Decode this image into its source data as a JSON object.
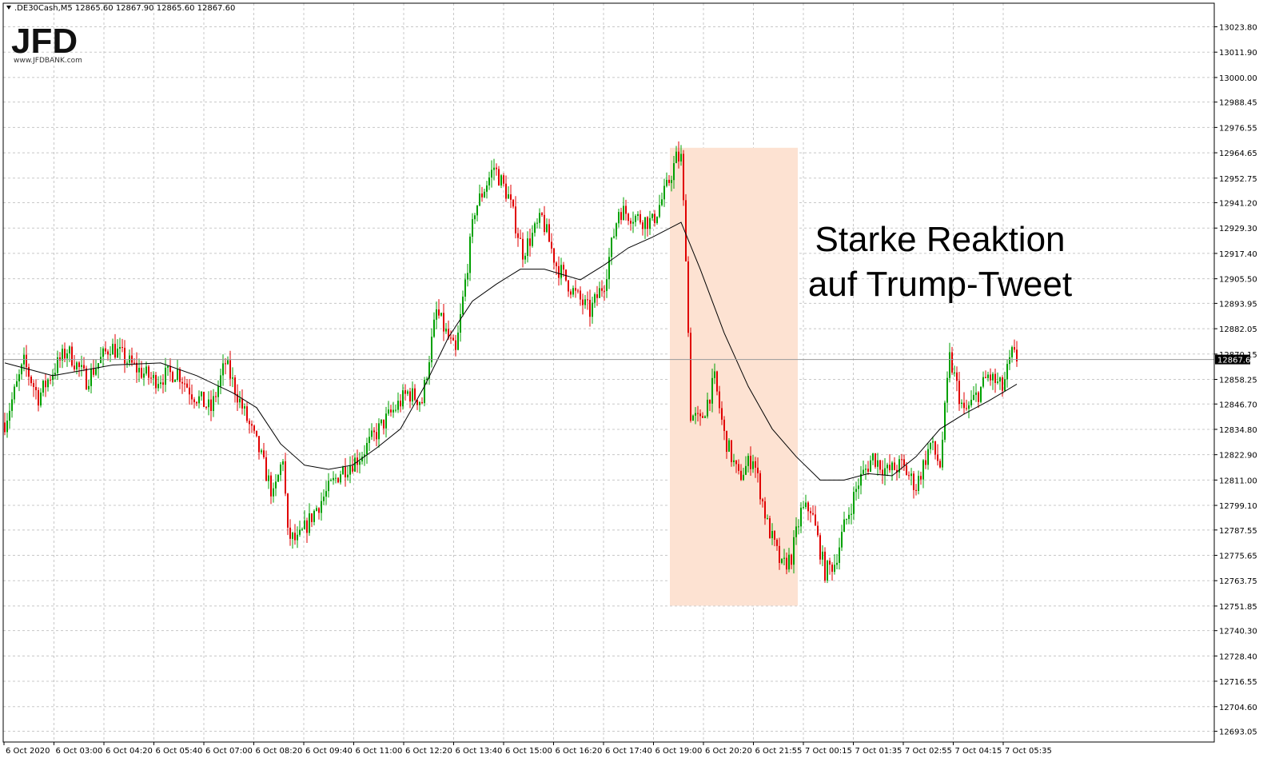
{
  "header": {
    "symbol_line": ".DE30Cash,M5  12865.60 12867.90 12865.60 12867.60"
  },
  "logo": {
    "letters": "JFD",
    "url_text": "www.JFDBANK.com"
  },
  "annotation": {
    "line1": "Starke Reaktion",
    "line2": "auf Trump-Tweet"
  },
  "colors": {
    "bull": "#00a000",
    "bear": "#e00000",
    "grid": "#c8c8c8",
    "ma": "#000000",
    "highlight": "#fde2d2",
    "current_price_bg": "#000000"
  },
  "chart_data": {
    "type": "candlestick",
    "title": "",
    "instrument": ".DE30Cash",
    "timeframe": "M5",
    "ylim": [
      12688.0,
      13030.0
    ],
    "price_ticks": [
      13023.8,
      13011.9,
      13000.0,
      12988.45,
      12976.55,
      12964.65,
      12952.75,
      12941.2,
      12929.3,
      12917.4,
      12905.5,
      12893.95,
      12882.05,
      12870.15,
      12858.25,
      12846.7,
      12834.8,
      12822.9,
      12811.0,
      12799.1,
      12787.55,
      12775.65,
      12763.75,
      12751.85,
      12740.3,
      12728.4,
      12716.55,
      12704.6,
      12693.05
    ],
    "price_tick_labels": [
      "13023.80",
      "13011.90",
      "13000.00",
      "12988.45",
      "12976.55",
      "12964.65",
      "12952.75",
      "12941.20",
      "12929.30",
      "12917.40",
      "12905.50",
      "12893.95",
      "12882.05",
      "12870.15",
      "12858.25",
      "12846.70",
      "12834.80",
      "12822.90",
      "12811.00",
      "12799.10",
      "12787.55",
      "12775.65",
      "12763.75",
      "12751.85",
      "12740.30",
      "12728.40",
      "12716.55",
      "12704.60",
      "12693.05"
    ],
    "time_labels": [
      "6 Oct 2020",
      "6 Oct 03:00",
      "6 Oct 04:20",
      "6 Oct 05:40",
      "6 Oct 07:00",
      "6 Oct 08:20",
      "6 Oct 09:40",
      "6 Oct 11:00",
      "6 Oct 12:20",
      "6 Oct 13:40",
      "6 Oct 15:00",
      "6 Oct 16:20",
      "6 Oct 17:40",
      "6 Oct 19:00",
      "6 Oct 20:20",
      "6 Oct 21:55",
      "7 Oct 00:15",
      "7 Oct 01:35",
      "7 Oct 02:55",
      "7 Oct 04:15",
      "7 Oct 05:35"
    ],
    "current_price": 12867.6,
    "current_price_label": "12867.60",
    "highlight_zone": {
      "from_candle": 278,
      "to_candle": 330,
      "high": 12967.0,
      "low": 12752.0
    },
    "moving_average": [
      [
        0,
        12866
      ],
      [
        20,
        12860
      ],
      [
        45,
        12865
      ],
      [
        65,
        12866
      ],
      [
        80,
        12860
      ],
      [
        95,
        12852
      ],
      [
        105,
        12845
      ],
      [
        115,
        12828
      ],
      [
        125,
        12818
      ],
      [
        135,
        12816
      ],
      [
        145,
        12818
      ],
      [
        155,
        12826
      ],
      [
        165,
        12835
      ],
      [
        175,
        12855
      ],
      [
        185,
        12878
      ],
      [
        195,
        12895
      ],
      [
        205,
        12903
      ],
      [
        215,
        12910
      ],
      [
        225,
        12910
      ],
      [
        240,
        12905
      ],
      [
        250,
        12912
      ],
      [
        260,
        12920
      ],
      [
        270,
        12925
      ],
      [
        282,
        12932
      ],
      [
        290,
        12910
      ],
      [
        300,
        12880
      ],
      [
        310,
        12855
      ],
      [
        320,
        12835
      ],
      [
        330,
        12822
      ],
      [
        340,
        12811
      ],
      [
        350,
        12811
      ],
      [
        360,
        12814
      ],
      [
        370,
        12813
      ],
      [
        380,
        12822
      ],
      [
        390,
        12835
      ],
      [
        400,
        12842
      ],
      [
        410,
        12848
      ],
      [
        422,
        12856
      ]
    ],
    "ma_label": "",
    "grid": true,
    "legend": "none"
  }
}
